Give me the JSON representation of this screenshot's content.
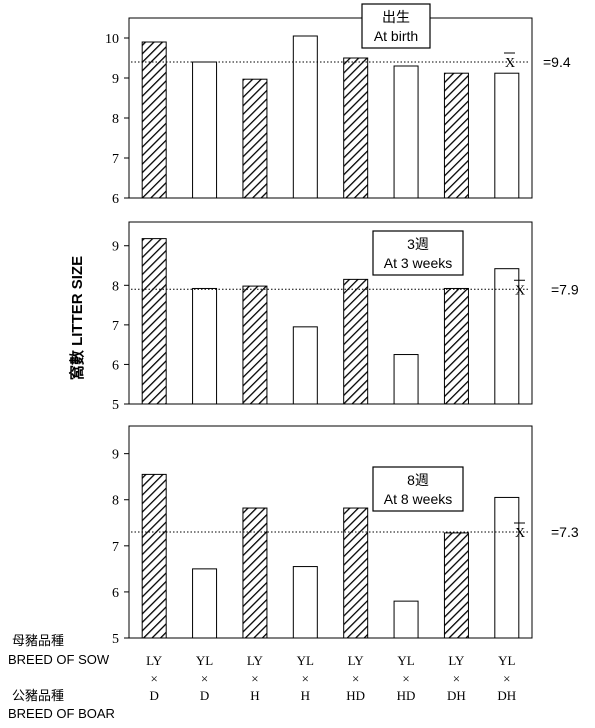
{
  "chart_data": {
    "type": "bar",
    "ylabel": "窩數 LITTER SIZE",
    "sow_row_label_zh": "母豬品種",
    "sow_row_label_en": "BREED OF SOW",
    "boar_row_label_zh": "公豬品種",
    "boar_row_label_en": "BREED OF BOAR",
    "cross_symbol": "×",
    "mean_symbol": "X",
    "categories": [
      {
        "sow": "LY",
        "boar": "D",
        "style": "hatched"
      },
      {
        "sow": "YL",
        "boar": "D",
        "style": "open"
      },
      {
        "sow": "LY",
        "boar": "H",
        "style": "hatched"
      },
      {
        "sow": "YL",
        "boar": "H",
        "style": "open"
      },
      {
        "sow": "LY",
        "boar": "HD",
        "style": "hatched"
      },
      {
        "sow": "YL",
        "boar": "HD",
        "style": "open"
      },
      {
        "sow": "LY",
        "boar": "DH",
        "style": "hatched"
      },
      {
        "sow": "YL",
        "boar": "DH",
        "style": "open"
      }
    ],
    "panels": [
      {
        "label_zh": "出生",
        "label_en": "At birth",
        "ylim": [
          6,
          10.5
        ],
        "yticks": [
          6,
          7,
          8,
          9,
          10
        ],
        "values": [
          9.9,
          9.4,
          8.97,
          10.05,
          9.5,
          9.3,
          9.12,
          9.12
        ],
        "mean": 9.4,
        "mean_label": "=9.4"
      },
      {
        "label_zh": "3週",
        "label_en": "At 3 weeks",
        "ylim": [
          5,
          9.6
        ],
        "yticks": [
          5,
          6,
          7,
          8,
          9
        ],
        "values": [
          9.18,
          7.92,
          7.98,
          6.95,
          8.15,
          6.25,
          7.92,
          8.42
        ],
        "mean": 7.9,
        "mean_label": "=7.9"
      },
      {
        "label_zh": "8週",
        "label_en": "At 8 weeks",
        "ylim": [
          5,
          9.6
        ],
        "yticks": [
          5,
          6,
          7,
          8,
          9
        ],
        "values": [
          8.55,
          6.5,
          7.82,
          6.55,
          7.82,
          5.8,
          7.28,
          8.05
        ],
        "mean": 7.3,
        "mean_label": "=7.3"
      }
    ]
  }
}
